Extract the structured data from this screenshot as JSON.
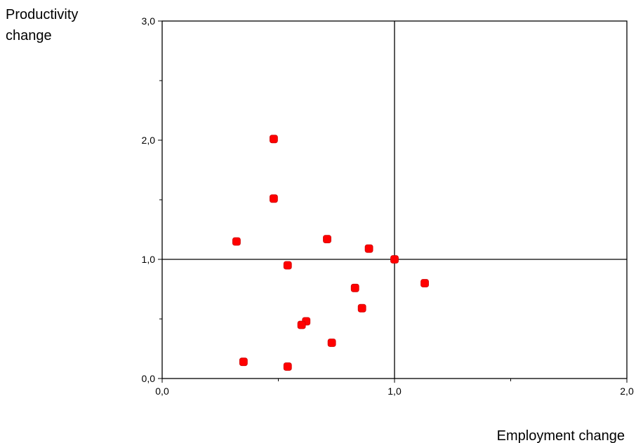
{
  "chart_data": {
    "type": "scatter",
    "title": "",
    "xlabel": "Employment change",
    "ylabel_lines": [
      "Productivity",
      "change"
    ],
    "xlim": [
      0,
      2
    ],
    "ylim": [
      0,
      3
    ],
    "x_tick_values": [
      0,
      1,
      2
    ],
    "x_tick_labels": [
      "0,0",
      "1,0",
      "2,0"
    ],
    "x_minor_ticks": [
      0.5,
      1.5
    ],
    "y_tick_values": [
      0,
      1,
      2,
      3
    ],
    "y_tick_labels": [
      "0,0",
      "1,0",
      "2,0",
      "3,0"
    ],
    "y_minor_ticks": [
      0.5,
      1.5,
      2.5
    ],
    "reference_lines": {
      "x": 1.0,
      "y": 1.0
    },
    "grid": false,
    "marker_color": "#ff0000",
    "points": [
      {
        "x": 0.48,
        "y": 2.01
      },
      {
        "x": 0.48,
        "y": 1.51
      },
      {
        "x": 0.32,
        "y": 1.15
      },
      {
        "x": 0.71,
        "y": 1.17
      },
      {
        "x": 0.89,
        "y": 1.09
      },
      {
        "x": 1.0,
        "y": 1.0
      },
      {
        "x": 0.54,
        "y": 0.95
      },
      {
        "x": 1.13,
        "y": 0.8
      },
      {
        "x": 0.83,
        "y": 0.76
      },
      {
        "x": 0.86,
        "y": 0.59
      },
      {
        "x": 0.62,
        "y": 0.48
      },
      {
        "x": 0.6,
        "y": 0.45
      },
      {
        "x": 0.73,
        "y": 0.3
      },
      {
        "x": 0.35,
        "y": 0.14
      },
      {
        "x": 0.54,
        "y": 0.1
      }
    ]
  }
}
